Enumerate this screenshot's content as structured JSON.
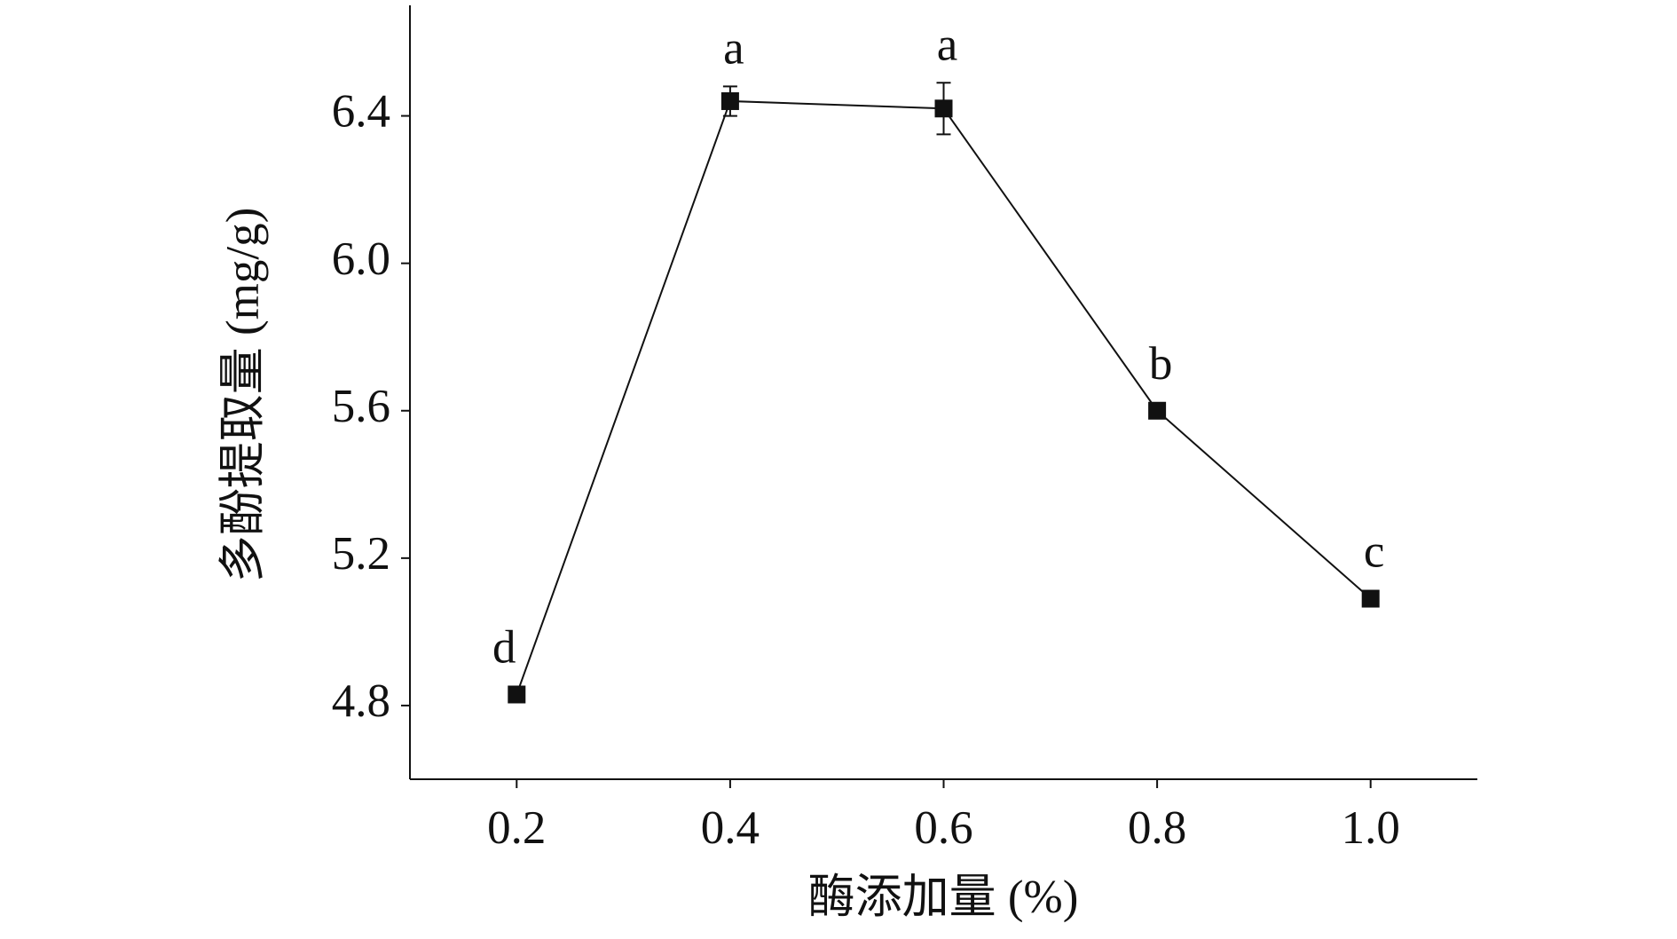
{
  "chart_data": {
    "type": "line",
    "x_label": "酶添加量 (%)",
    "y_label": "多酚提取量 (mg/g)",
    "x": [
      0.2,
      0.4,
      0.6,
      0.8,
      1.0
    ],
    "series": [
      {
        "color": "#111111",
        "values": [
          4.83,
          6.44,
          6.42,
          5.6,
          5.09
        ],
        "errors": [
          0.01,
          0.04,
          0.07,
          0.01,
          0.01
        ],
        "point_labels": [
          "d",
          "a",
          "a",
          "b",
          "c"
        ]
      }
    ],
    "xlim": [
      0.1,
      1.1
    ],
    "xticks": [
      {
        "value": 0.2,
        "label": "0.2"
      },
      {
        "value": 0.4,
        "label": "0.4"
      },
      {
        "value": 0.6,
        "label": "0.6"
      },
      {
        "value": 0.8,
        "label": "0.8"
      },
      {
        "value": 1.0,
        "label": "1.0"
      }
    ],
    "ylim": [
      4.6,
      6.7
    ],
    "yticks": [
      {
        "value": 4.8,
        "label": "4.8"
      },
      {
        "value": 5.2,
        "label": "5.2"
      },
      {
        "value": 5.6,
        "label": "5.6"
      },
      {
        "value": 6.0,
        "label": "6.0"
      },
      {
        "value": 6.4,
        "label": "6.4"
      }
    ],
    "grid": false
  }
}
